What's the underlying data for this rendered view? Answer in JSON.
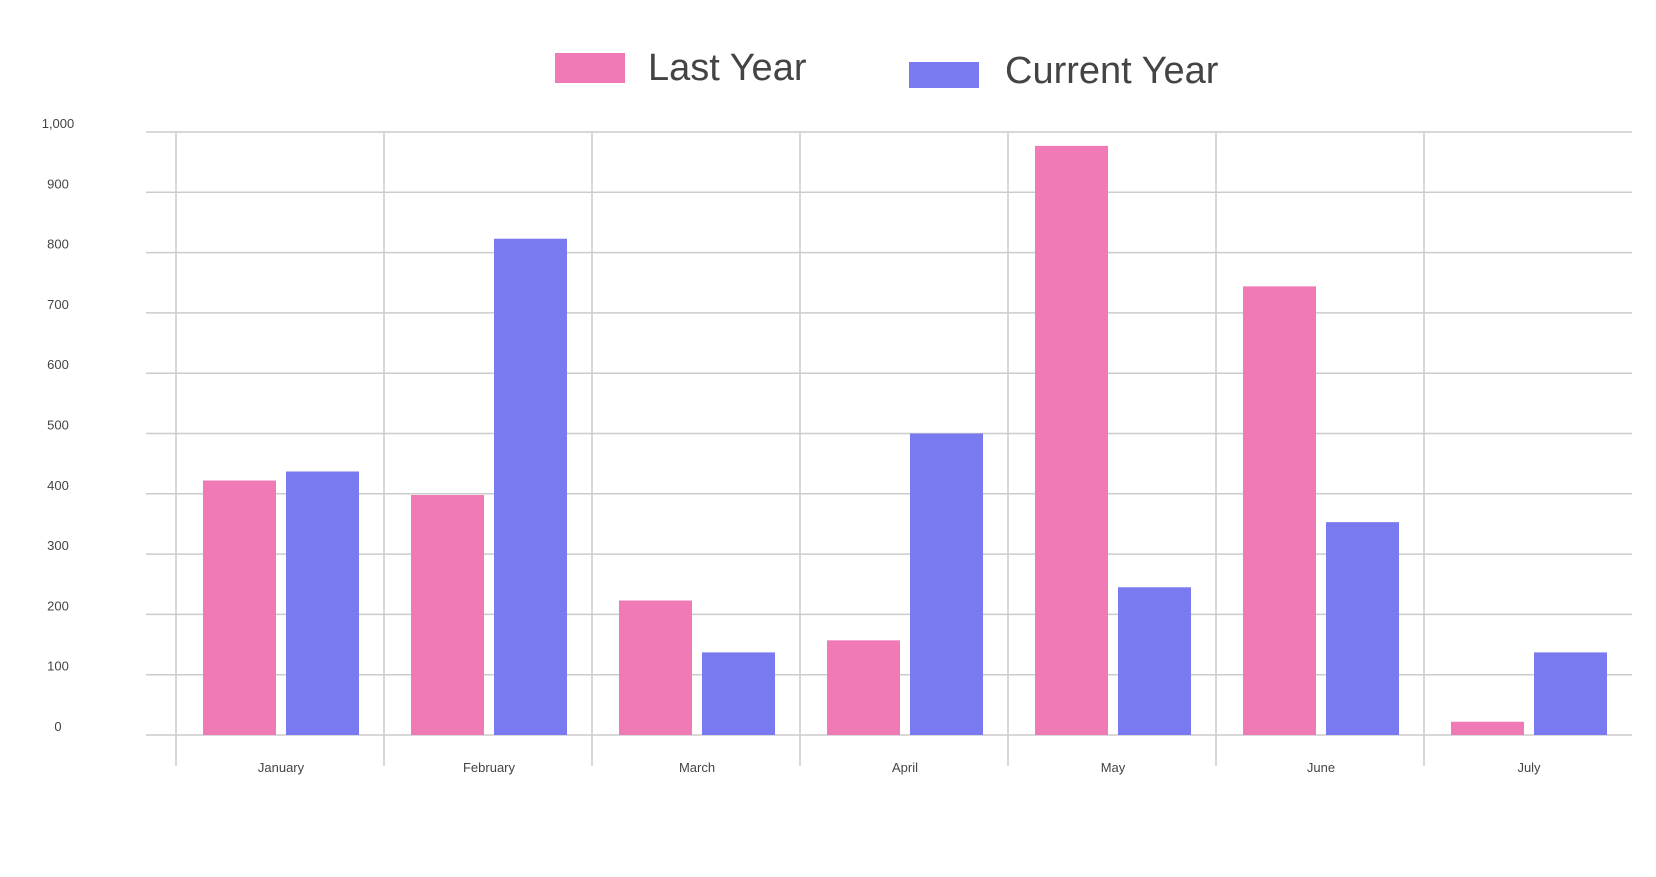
{
  "chart_data": {
    "type": "bar",
    "title": "",
    "xlabel": "",
    "ylabel": "",
    "categories": [
      "January",
      "February",
      "March",
      "April",
      "May",
      "June",
      "July"
    ],
    "series": [
      {
        "name": "Last Year",
        "color": "#f07ab6",
        "values": [
          422,
          398,
          223,
          157,
          977,
          744,
          22
        ]
      },
      {
        "name": "Current Year",
        "color": "#7a7af0",
        "values": [
          437,
          823,
          137,
          500,
          245,
          353,
          137
        ]
      }
    ],
    "ylim": [
      0,
      1000
    ],
    "yticks": [
      {
        "value": 0,
        "label": "0"
      },
      {
        "value": 100,
        "label": "100"
      },
      {
        "value": 200,
        "label": "200"
      },
      {
        "value": 300,
        "label": "300"
      },
      {
        "value": 400,
        "label": "400"
      },
      {
        "value": 500,
        "label": "500"
      },
      {
        "value": 600,
        "label": "600"
      },
      {
        "value": 700,
        "label": "700"
      },
      {
        "value": 800,
        "label": "800"
      },
      {
        "value": 900,
        "label": "900"
      },
      {
        "value": 1000,
        "label": "1,000"
      }
    ],
    "grid": true,
    "legend_position": "top-center",
    "gridline_color": "#cccccc",
    "text_color": "#444444"
  }
}
